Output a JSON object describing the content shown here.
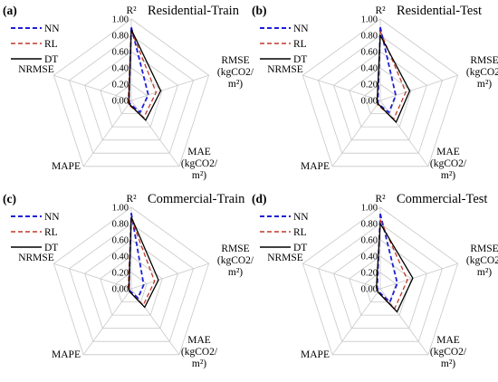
{
  "figure": {
    "series_styles": [
      {
        "name": "NN",
        "color": "#1f1fd6",
        "dash": "dashed-heavy"
      },
      {
        "name": "RL",
        "color": "#c0392b",
        "dash": "dashed"
      },
      {
        "name": "DT",
        "color": "#000000",
        "dash": "solid"
      }
    ],
    "colors": {
      "grid": "#c8c8c8",
      "text": "#000000"
    }
  },
  "chart_data": [
    {
      "type": "radar",
      "panel": "(a)",
      "title": "Residential-Train",
      "axes": [
        "R²",
        "RMSE\n(kgCO2/\nm²)",
        "MAE\n(kgCO2/\nm²)",
        "MAPE",
        "NRMSE"
      ],
      "ticks": [
        "0.00",
        "0.20",
        "0.40",
        "0.60",
        "0.80",
        "1.00"
      ],
      "rlim": [
        0,
        1
      ],
      "legend": {
        "position": "top-left",
        "entries": [
          "NN",
          "RL",
          "DT"
        ]
      },
      "series": [
        {
          "name": "NN",
          "values": [
            0.9,
            0.22,
            0.18,
            0.04,
            0.03
          ]
        },
        {
          "name": "RL",
          "values": [
            0.86,
            0.32,
            0.26,
            0.06,
            0.04
          ]
        },
        {
          "name": "DT",
          "values": [
            0.87,
            0.38,
            0.3,
            0.05,
            0.03
          ]
        }
      ]
    },
    {
      "type": "radar",
      "panel": "(b)",
      "title": "Residential-Test",
      "axes": [
        "R²",
        "RMSE\n(kgCO2/\nm²)",
        "MAE\n(kgCO2/\nm²)",
        "MAPE",
        "NRMSE"
      ],
      "ticks": [
        "0.00",
        "0.20",
        "0.40",
        "0.60",
        "0.80",
        "1.00"
      ],
      "rlim": [
        0,
        1
      ],
      "legend": {
        "position": "top-left",
        "entries": [
          "NN",
          "RL",
          "DT"
        ]
      },
      "series": [
        {
          "name": "NN",
          "values": [
            0.9,
            0.2,
            0.18,
            0.05,
            0.03
          ]
        },
        {
          "name": "RL",
          "values": [
            0.85,
            0.33,
            0.28,
            0.06,
            0.04
          ]
        },
        {
          "name": "DT",
          "values": [
            0.8,
            0.38,
            0.33,
            0.05,
            0.04
          ]
        }
      ]
    },
    {
      "type": "radar",
      "panel": "(c)",
      "title": "Commercial-Train",
      "axes": [
        "R²",
        "RMSE\n(kgCO2/\nm²)",
        "MAE\n(kgCO2/\nm²)",
        "MAPE",
        "NRMSE"
      ],
      "ticks": [
        "0.00",
        "0.20",
        "0.40",
        "0.60",
        "0.80",
        "1.00"
      ],
      "rlim": [
        0,
        1
      ],
      "legend": {
        "position": "top-left",
        "entries": [
          "NN",
          "RL",
          "DT"
        ]
      },
      "series": [
        {
          "name": "NN",
          "values": [
            0.93,
            0.16,
            0.14,
            0.03,
            0.03
          ]
        },
        {
          "name": "RL",
          "values": [
            0.86,
            0.3,
            0.25,
            0.04,
            0.04
          ]
        },
        {
          "name": "DT",
          "values": [
            0.88,
            0.35,
            0.28,
            0.04,
            0.03
          ]
        }
      ]
    },
    {
      "type": "radar",
      "panel": "(d)",
      "title": "Commercial-Test",
      "axes": [
        "R²",
        "RMSE\n(kgCO2/\nm²)",
        "MAE\n(kgCO2/\nm²)",
        "MAPE",
        "NRMSE"
      ],
      "ticks": [
        "0.00",
        "0.20",
        "0.40",
        "0.60",
        "0.80",
        "1.00"
      ],
      "rlim": [
        0,
        1
      ],
      "legend": {
        "position": "top-left",
        "entries": [
          "NN",
          "RL",
          "DT"
        ]
      },
      "series": [
        {
          "name": "NN",
          "values": [
            0.92,
            0.22,
            0.2,
            0.04,
            0.04
          ]
        },
        {
          "name": "RL",
          "values": [
            0.85,
            0.35,
            0.3,
            0.05,
            0.05
          ]
        },
        {
          "name": "DT",
          "values": [
            0.8,
            0.42,
            0.35,
            0.05,
            0.05
          ]
        }
      ]
    }
  ]
}
